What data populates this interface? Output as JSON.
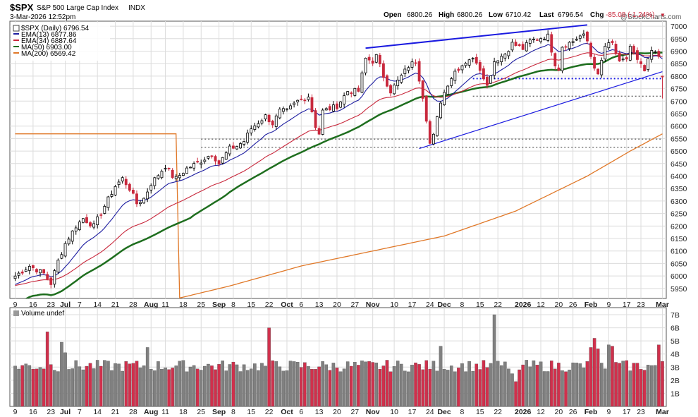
{
  "header": {
    "symbol": "$SPX",
    "name": "S&P 500 Large Cap Index",
    "exchange": "INDX",
    "timestamp": "3-Mar-2026 12:52pm",
    "open_label": "Open",
    "open": "6800.26",
    "high_label": "High",
    "high": "6800.26",
    "low_label": "Low",
    "low": "6710.42",
    "last_label": "Last",
    "last": "6796.54",
    "chg_label": "Chg",
    "chg": "-85.08 (-1.24%)",
    "chg_arrow": "▼",
    "watermark": "@StockCharts.com"
  },
  "legend": [
    {
      "label": "$SPX (Daily) 6796.54",
      "color": "#000000"
    },
    {
      "label": "EMA(13) 6877.86",
      "color": "#1c1ca0"
    },
    {
      "label": "EMA(34) 6887.64",
      "color": "#c8283c"
    },
    {
      "label": "MA(50) 6903.00",
      "color": "#1e6e1e"
    },
    {
      "label": "MA(200) 6569.42",
      "color": "#e07828"
    }
  ],
  "volume_label": "Volume undef",
  "colors": {
    "up": "#808080",
    "down": "#d0304c",
    "price_up": "#000000",
    "price_down": "#c8283c",
    "trend": "#1a1ae0",
    "grid": "#dcdcdc"
  },
  "chart_data": [
    {
      "type": "candlestick",
      "title": "$SPX S&P 500 Large Cap Index INDX",
      "ylim": [
        5910,
        7020
      ],
      "y_ticks": [
        5950,
        6000,
        6050,
        6100,
        6150,
        6200,
        6250,
        6300,
        6350,
        6400,
        6450,
        6500,
        6550,
        6600,
        6650,
        6700,
        6750,
        6800,
        6850,
        6900,
        6950,
        7000
      ],
      "x_tick_labels": [
        "9",
        "16",
        "23",
        "Jul",
        "7",
        "14",
        "21",
        "28",
        "Aug",
        "11",
        "18",
        "25",
        "Sep",
        "8",
        "15",
        "22",
        "Oct",
        "6",
        "13",
        "20",
        "27",
        "Nov",
        "10",
        "17",
        "24",
        "Dec",
        "8",
        "15",
        "22",
        "2026",
        "12",
        "20",
        "26",
        "Feb",
        "9",
        "17",
        "23",
        "Mar"
      ],
      "x_tick_label_bold": [
        false,
        false,
        false,
        true,
        false,
        false,
        false,
        false,
        true,
        false,
        false,
        false,
        true,
        false,
        false,
        false,
        true,
        false,
        false,
        false,
        false,
        true,
        false,
        false,
        false,
        true,
        false,
        false,
        false,
        true,
        false,
        false,
        false,
        true,
        false,
        false,
        false,
        true
      ],
      "x_tick_bar_index": [
        0,
        5,
        10,
        14,
        18,
        23,
        28,
        33,
        38,
        42,
        47,
        52,
        57,
        61,
        66,
        71,
        76,
        80,
        85,
        90,
        95,
        100,
        106,
        111,
        116,
        120,
        125,
        130,
        135,
        142,
        147,
        152,
        156,
        161,
        166,
        171,
        175,
        181
      ],
      "close_waypoints": [
        [
          0,
          6000
        ],
        [
          4,
          6040
        ],
        [
          8,
          6010
        ],
        [
          10,
          5970
        ],
        [
          12,
          6060
        ],
        [
          14,
          6130
        ],
        [
          17,
          6200
        ],
        [
          19,
          6230
        ],
        [
          22,
          6200
        ],
        [
          25,
          6280
        ],
        [
          28,
          6360
        ],
        [
          30,
          6390
        ],
        [
          32,
          6350
        ],
        [
          34,
          6290
        ],
        [
          36,
          6310
        ],
        [
          38,
          6370
        ],
        [
          42,
          6440
        ],
        [
          44,
          6400
        ],
        [
          45,
          6390
        ],
        [
          48,
          6430
        ],
        [
          52,
          6460
        ],
        [
          55,
          6490
        ],
        [
          57,
          6450
        ],
        [
          60,
          6510
        ],
        [
          62,
          6520
        ],
        [
          64,
          6540
        ],
        [
          66,
          6590
        ],
        [
          70,
          6640
        ],
        [
          72,
          6610
        ],
        [
          74,
          6660
        ],
        [
          76,
          6660
        ],
        [
          79,
          6700
        ],
        [
          82,
          6720
        ],
        [
          84,
          6600
        ],
        [
          85,
          6570
        ],
        [
          86,
          6660
        ],
        [
          90,
          6680
        ],
        [
          93,
          6740
        ],
        [
          96,
          6740
        ],
        [
          98,
          6870
        ],
        [
          100,
          6860
        ],
        [
          101,
          6880
        ],
        [
          103,
          6800
        ],
        [
          105,
          6740
        ],
        [
          107,
          6780
        ],
        [
          110,
          6840
        ],
        [
          112,
          6860
        ],
        [
          114,
          6720
        ],
        [
          115,
          6630
        ],
        [
          116,
          6530
        ],
        [
          117,
          6560
        ],
        [
          119,
          6700
        ],
        [
          121,
          6770
        ],
        [
          123,
          6820
        ],
        [
          127,
          6870
        ],
        [
          129,
          6860
        ],
        [
          131,
          6800
        ],
        [
          132,
          6760
        ],
        [
          134,
          6860
        ],
        [
          137,
          6890
        ],
        [
          139,
          6930
        ],
        [
          142,
          6910
        ],
        [
          144,
          6940
        ],
        [
          146,
          6950
        ],
        [
          149,
          6960
        ],
        [
          151,
          6850
        ],
        [
          152,
          6830
        ],
        [
          153,
          6920
        ],
        [
          156,
          6940
        ],
        [
          158,
          6960
        ],
        [
          159,
          6960
        ],
        [
          160,
          6940
        ],
        [
          161,
          6880
        ],
        [
          163,
          6800
        ],
        [
          165,
          6920
        ],
        [
          167,
          6930
        ],
        [
          169,
          6850
        ],
        [
          171,
          6870
        ],
        [
          172,
          6920
        ],
        [
          174,
          6860
        ],
        [
          176,
          6820
        ],
        [
          178,
          6900
        ],
        [
          180,
          6880
        ],
        [
          181,
          6800
        ]
      ],
      "bar_count": 182,
      "last": {
        "open": 6800.26,
        "high": 6800.26,
        "low": 6710.42,
        "close": 6796.54
      },
      "ema13_last": 6877.86,
      "ema34_last": 6887.64,
      "ma50_last": 6903.0,
      "ma200_last": 6569.42,
      "ma200_waypoints": [
        [
          46,
          5912
        ],
        [
          60,
          5960
        ],
        [
          80,
          6040
        ],
        [
          100,
          6100
        ],
        [
          120,
          6160
        ],
        [
          140,
          6260
        ],
        [
          160,
          6400
        ],
        [
          172,
          6500
        ],
        [
          181,
          6569
        ]
      ],
      "trendlines": [
        {
          "from": [
            98,
            6912
          ],
          "to": [
            160,
            7005
          ],
          "style": "solid"
        },
        {
          "from": [
            113,
            6510
          ],
          "to": [
            181,
            6818
          ],
          "style": "solid"
        }
      ],
      "support_lines": [
        {
          "value": 6548,
          "from_bar": 52,
          "to_bar": 181
        },
        {
          "value": 6515,
          "from_bar": 52,
          "to_bar": 181
        },
        {
          "value": 6790,
          "from_bar": 128,
          "to_bar": 181
        },
        {
          "value": 6720,
          "from_bar": 128,
          "to_bar": 181
        }
      ]
    },
    {
      "type": "bar",
      "title": "Volume",
      "ylim": [
        0,
        7000000000
      ],
      "y_ticks": [
        1000000000,
        2000000000,
        3000000000,
        4000000000,
        5000000000,
        6000000000,
        7000000000
      ],
      "y_tick_labels": [
        "1B",
        "2B",
        "3B",
        "4B",
        "5B",
        "6B",
        "7B"
      ],
      "spikes": [
        [
          9,
          5.7
        ],
        [
          13,
          4.9
        ],
        [
          14,
          4.1
        ],
        [
          37,
          4.5
        ],
        [
          71,
          6.0
        ],
        [
          119,
          4.6
        ],
        [
          134,
          7.0
        ],
        [
          139,
          2.5
        ],
        [
          140,
          1.9
        ],
        [
          141,
          2.8
        ],
        [
          161,
          4.5
        ],
        [
          162,
          5.2
        ],
        [
          163,
          4.4
        ],
        [
          166,
          4.7
        ],
        [
          167,
          4.6
        ],
        [
          180,
          4.7
        ]
      ],
      "base": 3.0
    }
  ]
}
